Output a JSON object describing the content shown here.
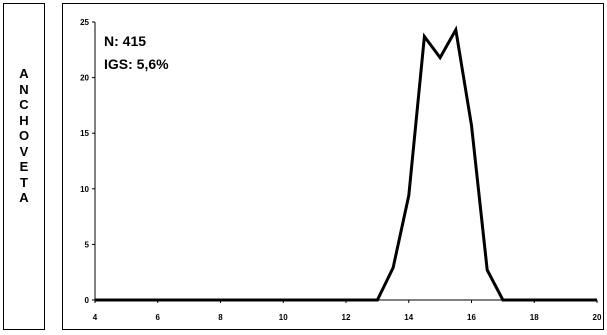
{
  "side_label": "ANCHOVETA",
  "chart_data": {
    "type": "line",
    "title": "",
    "xlabel": "",
    "ylabel": "",
    "xlim": [
      4,
      20
    ],
    "ylim": [
      0,
      25
    ],
    "xticks": [
      4,
      6,
      8,
      10,
      12,
      14,
      16,
      18,
      20
    ],
    "yticks": [
      0,
      5,
      10,
      15,
      20,
      25
    ],
    "xtick_labels": [
      "4",
      "6",
      "8",
      "10",
      "12",
      "14",
      "16",
      "18",
      "20"
    ],
    "ytick_labels": [
      "0",
      "5",
      "10",
      "15",
      "20",
      "25"
    ],
    "grid": false,
    "annotations": [
      "N: 415",
      "IGS: 5,6%"
    ],
    "series": [
      {
        "x": [
          4,
          4.5,
          5,
          5.5,
          6,
          6.5,
          7,
          7.5,
          8,
          8.5,
          9,
          9.5,
          10,
          10.5,
          11,
          11.5,
          12,
          12.5,
          13,
          13.5,
          14,
          14.5,
          15,
          15.5,
          16,
          16.5,
          17,
          17.5,
          18,
          18.5,
          19,
          19.5,
          20
        ],
        "y": [
          0,
          0,
          0,
          0,
          0,
          0,
          0,
          0,
          0,
          0,
          0,
          0,
          0,
          0,
          0,
          0,
          0,
          0,
          0,
          2.9,
          9.4,
          23.7,
          21.8,
          24.3,
          15.7,
          2.7,
          0,
          0,
          0,
          0,
          0,
          0,
          0
        ],
        "color": "#000000"
      }
    ]
  }
}
